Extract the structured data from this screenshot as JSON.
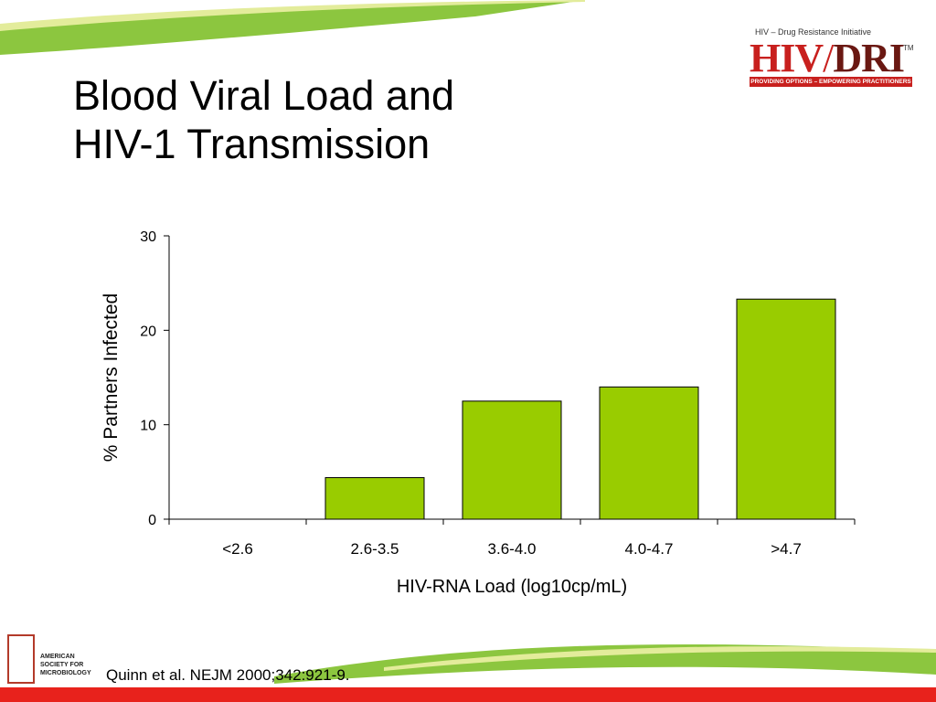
{
  "slide": {
    "title_line1": "Blood Viral Load and",
    "title_line2": "HIV-1 Transmission",
    "citation": "Quinn et al. NEJM 2000;342:921-9."
  },
  "logos": {
    "hivdri": {
      "tagline": "HIV – Drug Resistance Initiative",
      "mark_left": "HIV",
      "mark_right": "DRI",
      "trademark": "TM",
      "ribbon": "PROVIDING OPTIONS – EMPOWERING PRACTITIONERS"
    },
    "asm": {
      "text_line1": "AMERICAN",
      "text_line2": "SOCIETY FOR",
      "text_line3": "MICROBIOLOGY"
    }
  },
  "colors": {
    "bar_fill": "#99cc00",
    "bar_stroke": "#000000",
    "accent_green": "#8cc63f",
    "accent_red": "#c8201e"
  },
  "chart_data": {
    "type": "bar",
    "categories": [
      "<2.6",
      "2.6-3.5",
      "3.6-4.0",
      "4.0-4.7",
      ">4.7"
    ],
    "values": [
      0,
      4.4,
      12.5,
      14.0,
      23.3
    ],
    "xlabel": "HIV-RNA Load (log10cp/mL)",
    "ylabel": "% Partners Infected",
    "ylim": [
      0,
      30
    ],
    "yticks": [
      0,
      10,
      20,
      30
    ],
    "grid": false,
    "legend": "none"
  }
}
